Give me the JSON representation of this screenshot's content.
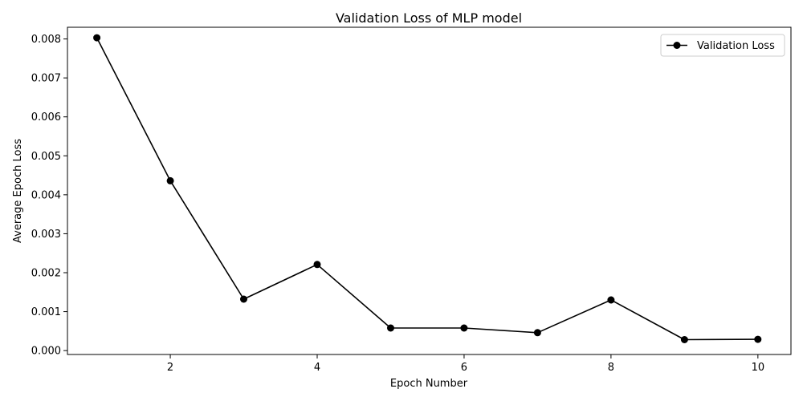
{
  "chart_data": {
    "type": "line",
    "title": "Validation Loss of MLP model",
    "xlabel": "Epoch Number",
    "ylabel": "Average Epoch Loss",
    "xlim": [
      0.6,
      10.45
    ],
    "ylim": [
      -0.0001,
      0.0083
    ],
    "xticks": [
      2,
      4,
      6,
      8,
      10
    ],
    "xtick_labels": [
      "2",
      "4",
      "6",
      "8",
      "10"
    ],
    "yticks": [
      0.0,
      0.001,
      0.002,
      0.003,
      0.004,
      0.005,
      0.006,
      0.007,
      0.008
    ],
    "ytick_labels": [
      "0.000",
      "0.001",
      "0.002",
      "0.003",
      "0.004",
      "0.005",
      "0.006",
      "0.007",
      "0.008"
    ],
    "grid": false,
    "legend_position": "top-right",
    "x": [
      1,
      2,
      3,
      4,
      5,
      6,
      7,
      8,
      9,
      10
    ],
    "series": [
      {
        "name": "Validation Loss",
        "color": "#000000",
        "marker": "circle",
        "values": [
          0.00803,
          0.00436,
          0.00132,
          0.00221,
          0.00058,
          0.00058,
          0.00046,
          0.0013,
          0.00028,
          0.00029
        ]
      }
    ]
  }
}
